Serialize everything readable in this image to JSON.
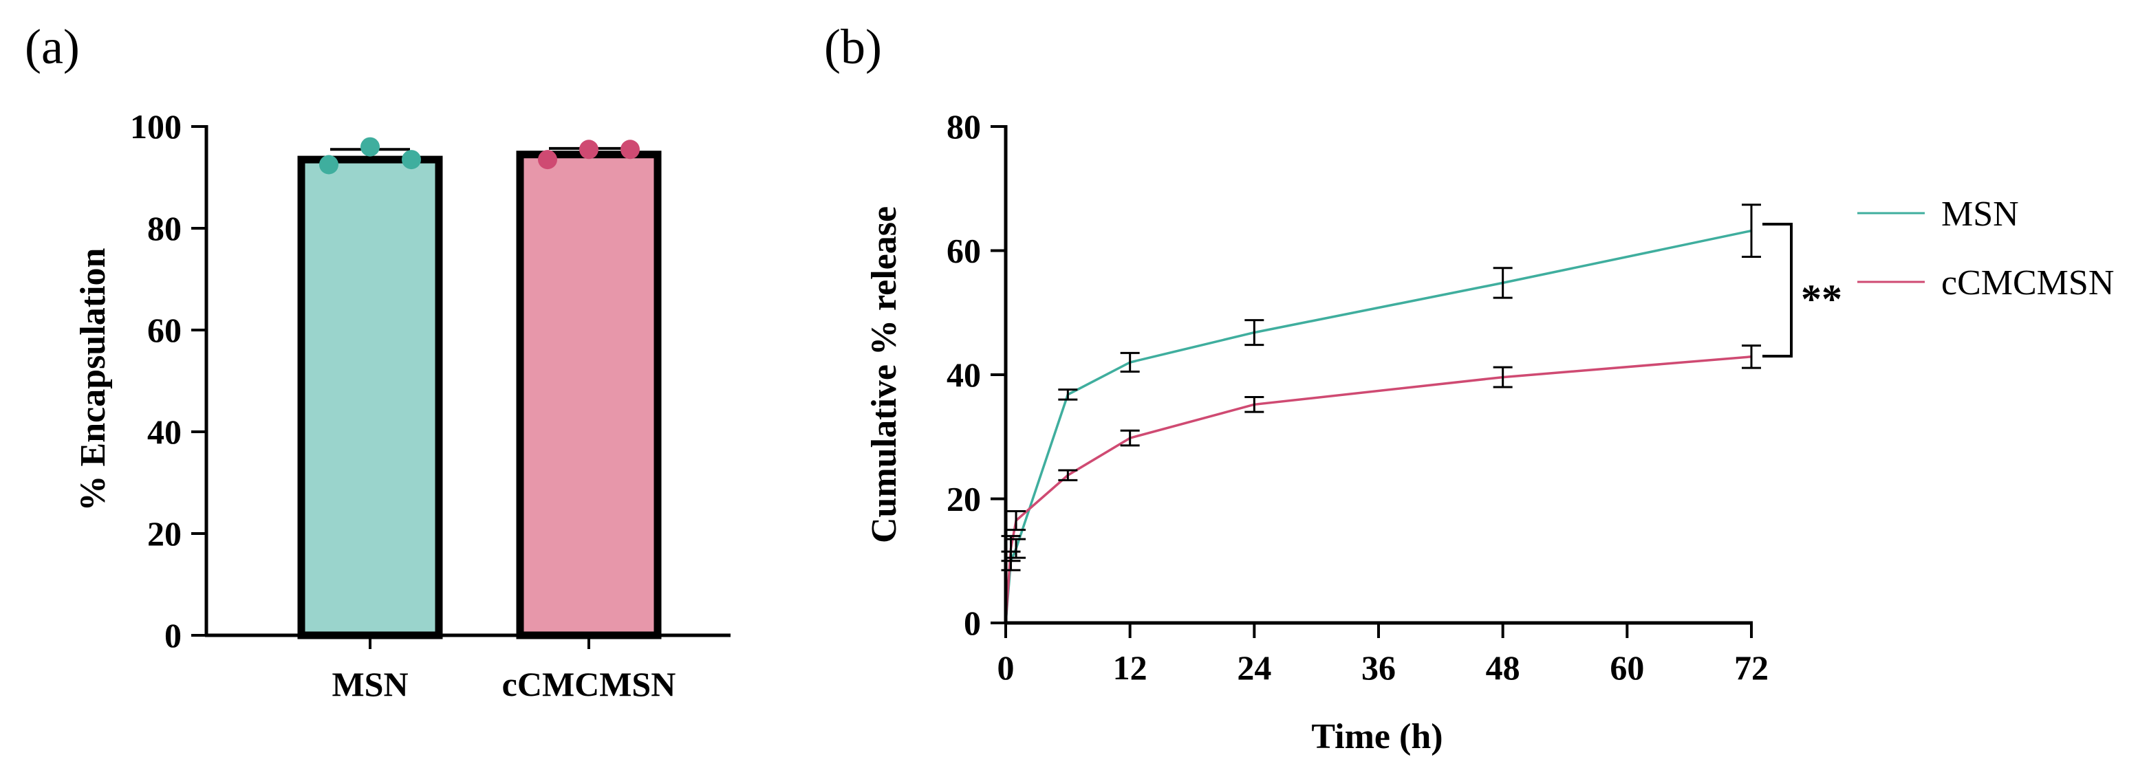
{
  "panels": {
    "a": "(a)",
    "b": "(b)"
  },
  "colors": {
    "msn": "#3fae9e",
    "msn_fill": "#9ad4cc",
    "ccmc": "#cf4a72",
    "ccmc_fill": "#e797aa",
    "axis": "#000000"
  },
  "chart_data": [
    {
      "type": "bar",
      "title": "",
      "xlabel": "",
      "ylabel": "% Encapsulation",
      "ylim": [
        0,
        100
      ],
      "yticks": [
        0,
        20,
        40,
        60,
        80,
        100
      ],
      "categories": [
        "MSN",
        "cCMCMSN"
      ],
      "values": [
        93.5,
        94.5
      ],
      "errors": [
        2.0,
        1.2
      ],
      "points": [
        [
          92.5,
          96.0,
          93.5
        ],
        [
          93.5,
          95.5,
          95.5
        ]
      ]
    },
    {
      "type": "line",
      "title": "",
      "xlabel": "Time (h)",
      "ylabel": "Cumulative % release",
      "xlim": [
        0,
        72
      ],
      "ylim": [
        0,
        80
      ],
      "xticks": [
        0,
        12,
        24,
        36,
        48,
        60,
        72
      ],
      "yticks": [
        0,
        20,
        40,
        60,
        80
      ],
      "series": [
        {
          "name": "MSN",
          "x": [
            0,
            0.5,
            1,
            6,
            12,
            24,
            48,
            72
          ],
          "y": [
            0,
            10,
            12,
            36.8,
            42,
            46.8,
            54.8,
            63.2
          ],
          "err": [
            0,
            1.5,
            1.5,
            0.8,
            1.5,
            2.0,
            2.4,
            4.2
          ]
        },
        {
          "name": "cCMCMSN",
          "x": [
            0,
            0.5,
            1,
            6,
            12,
            24,
            48,
            72
          ],
          "y": [
            0,
            12,
            16.5,
            23.8,
            29.8,
            35.2,
            39.6,
            42.9
          ],
          "err": [
            0,
            2.0,
            1.5,
            0.8,
            1.2,
            1.2,
            1.6,
            1.8
          ]
        }
      ],
      "legend_position": "right",
      "annotation": "**"
    }
  ]
}
